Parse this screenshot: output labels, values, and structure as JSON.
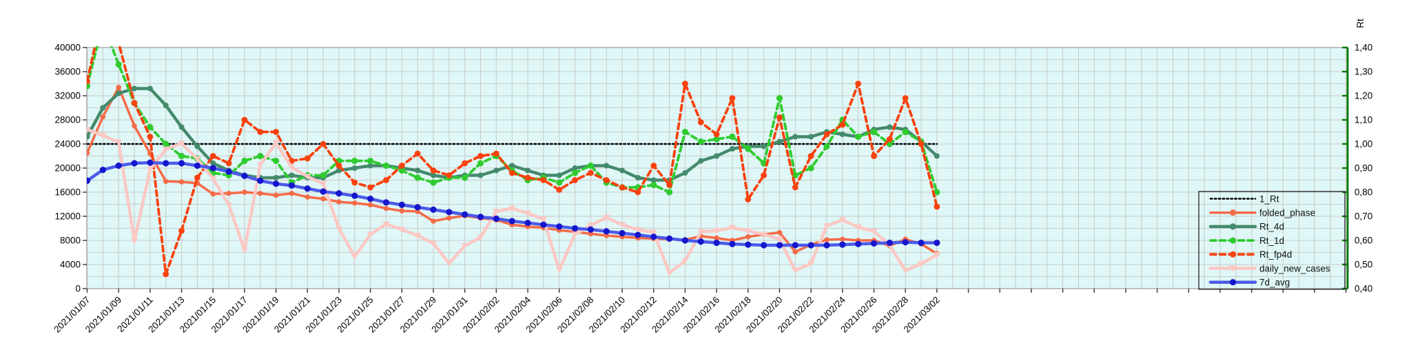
{
  "chart_data": {
    "type": "line",
    "title": "",
    "plot_bg": "#DFF7F7",
    "grid_color": "#C9C9C9",
    "border_color": "#9C9C9C",
    "x_axis": {
      "label_every": 2,
      "categories": [
        "2021/01/07",
        "2021/01/08",
        "2021/01/09",
        "2021/01/10",
        "2021/01/11",
        "2021/01/12",
        "2021/01/13",
        "2021/01/14",
        "2021/01/15",
        "2021/01/16",
        "2021/01/17",
        "2021/01/18",
        "2021/01/19",
        "2021/01/20",
        "2021/01/21",
        "2021/01/22",
        "2021/01/23",
        "2021/01/24",
        "2021/01/25",
        "2021/01/26",
        "2021/01/27",
        "2021/01/28",
        "2021/01/29",
        "2021/01/30",
        "2021/01/31",
        "2021/02/01",
        "2021/02/02",
        "2021/02/03",
        "2021/02/04",
        "2021/02/05",
        "2021/02/06",
        "2021/02/07",
        "2021/02/08",
        "2021/02/09",
        "2021/02/10",
        "2021/02/11",
        "2021/02/12",
        "2021/02/13",
        "2021/02/14",
        "2021/02/15",
        "2021/02/16",
        "2021/02/17",
        "2021/02/18",
        "2021/02/19",
        "2021/02/20",
        "2021/02/21",
        "2021/02/22",
        "2021/02/23",
        "2021/02/24",
        "2021/02/25",
        "2021/02/26",
        "2021/02/27",
        "2021/02/28",
        "2021/03/01",
        "2021/03/02"
      ]
    },
    "left_axis": {
      "min": 0,
      "max": 40000,
      "major": 4000,
      "minor": 2000,
      "tick_labels": [
        "0",
        "4000",
        "8000",
        "12000",
        "16000",
        "20000",
        "24000",
        "28000",
        "32000",
        "36000",
        "40000"
      ]
    },
    "right_axis": {
      "title": "Rt",
      "min": 0.4,
      "max": 1.4,
      "major": 0.1,
      "color": "#0B7A0B",
      "tick_labels": [
        "0,40",
        "0,50",
        "0,60",
        "0,70",
        "0,80",
        "0,90",
        "1,00",
        "1,10",
        "1,20",
        "1,30",
        "1,40"
      ]
    },
    "series": [
      {
        "name": "1_Rt",
        "axis": "right",
        "color": "#000000",
        "dash": "dotted",
        "marker": "none",
        "width": 2.5,
        "msize": 0,
        "constant": 1.0
      },
      {
        "name": "folded_phase",
        "axis": "left",
        "color": "#F56B47",
        "dash": "solid",
        "marker": "dot",
        "width": 3.5,
        "msize": 3.8,
        "values": [
          22500,
          28500,
          33400,
          27000,
          22400,
          17800,
          17700,
          17500,
          15700,
          15800,
          16000,
          15800,
          15500,
          15800,
          15200,
          14900,
          14400,
          14200,
          13900,
          13300,
          12900,
          12800,
          11200,
          11700,
          12100,
          11700,
          11400,
          10600,
          10300,
          10100,
          9700,
          9400,
          9100,
          8800,
          8600,
          8400,
          8300,
          8200,
          8100,
          8700,
          8400,
          8000,
          8600,
          9000,
          9300,
          6100,
          7300,
          8100,
          8200,
          8000,
          8000,
          7100,
          8200,
          7400,
          5800
        ]
      },
      {
        "name": "Rt_4d",
        "axis": "right",
        "color": "#448A6C",
        "dash": "solid",
        "marker": "dot",
        "width": 4.5,
        "msize": 4,
        "values": [
          1.03,
          1.15,
          1.21,
          1.23,
          1.23,
          1.16,
          1.07,
          0.99,
          0.92,
          0.89,
          0.87,
          0.86,
          0.86,
          0.87,
          0.86,
          0.86,
          0.89,
          0.9,
          0.91,
          0.91,
          0.9,
          0.89,
          0.87,
          0.86,
          0.87,
          0.87,
          0.89,
          0.91,
          0.89,
          0.87,
          0.87,
          0.9,
          0.91,
          0.91,
          0.89,
          0.86,
          0.85,
          0.85,
          0.88,
          0.93,
          0.95,
          0.98,
          0.99,
          0.99,
          1.01,
          1.03,
          1.03,
          1.05,
          1.04,
          1.03,
          1.06,
          1.07,
          1.06,
          1.01,
          0.95
        ]
      },
      {
        "name": "Rt_1d",
        "axis": "right",
        "color": "#2FCC2F",
        "dash": "dashed",
        "marker": "dot",
        "width": 3.8,
        "msize": 4.6,
        "values": [
          1.24,
          1.5,
          1.33,
          1.17,
          1.07,
          1.0,
          0.95,
          0.94,
          0.88,
          0.87,
          0.93,
          0.95,
          0.93,
          0.84,
          0.87,
          0.87,
          0.93,
          0.93,
          0.93,
          0.91,
          0.89,
          0.86,
          0.84,
          0.86,
          0.86,
          0.92,
          0.95,
          0.89,
          0.85,
          0.86,
          0.84,
          0.88,
          0.91,
          0.84,
          0.82,
          0.82,
          0.83,
          0.8,
          1.05,
          1.01,
          1.02,
          1.03,
          0.98,
          0.92,
          1.19,
          0.87,
          0.9,
          0.99,
          1.1,
          1.03,
          1.05,
          1.0,
          1.05,
          1.01,
          0.8
        ]
      },
      {
        "name": "Rt_fp4d",
        "axis": "right",
        "color": "#F8420E",
        "dash": "dashed",
        "marker": "dot",
        "width": 3.8,
        "msize": 4.4,
        "values": [
          1.26,
          1.55,
          1.42,
          1.17,
          1.03,
          0.46,
          0.64,
          0.86,
          0.95,
          0.92,
          1.1,
          1.05,
          1.05,
          0.93,
          0.94,
          1.0,
          0.91,
          0.84,
          0.82,
          0.85,
          0.91,
          0.96,
          0.89,
          0.87,
          0.92,
          0.95,
          0.96,
          0.88,
          0.86,
          0.85,
          0.81,
          0.85,
          0.88,
          0.85,
          0.82,
          0.8,
          0.91,
          0.83,
          1.25,
          1.09,
          1.04,
          1.19,
          0.77,
          0.87,
          1.11,
          0.82,
          0.95,
          1.04,
          1.08,
          1.25,
          0.95,
          1.02,
          1.19,
          1.0,
          0.74
        ]
      },
      {
        "name": "daily_new_cases",
        "axis": "left",
        "color": "#FBC8C4",
        "dash": "solid",
        "marker": "triangle-down",
        "width": 4.5,
        "msize": 5,
        "values": [
          26400,
          25400,
          24300,
          7900,
          19800,
          23100,
          24100,
          21500,
          18300,
          13900,
          6400,
          20500,
          24200,
          20100,
          18600,
          17400,
          10000,
          5300,
          9000,
          10700,
          9800,
          8800,
          7500,
          4200,
          7100,
          8500,
          12800,
          13300,
          12500,
          11500,
          3100,
          9000,
          10500,
          11800,
          10600,
          9800,
          9300,
          2600,
          4600,
          9400,
          9600,
          10100,
          9600,
          9000,
          8200,
          3000,
          4200,
          10400,
          11400,
          10200,
          9500,
          7200,
          3000,
          4100,
          5600
        ]
      },
      {
        "name": "7d_avg",
        "axis": "left",
        "color": "#4A5BE8",
        "marker_color": "#1616CC",
        "dash": "solid",
        "marker": "dot",
        "width": 4.5,
        "msize": 4.6,
        "values": [
          17900,
          19700,
          20400,
          20800,
          20900,
          20800,
          20800,
          20400,
          20000,
          19400,
          18700,
          17900,
          17400,
          17100,
          16600,
          16100,
          15800,
          15400,
          14900,
          14300,
          13900,
          13500,
          13100,
          12700,
          12300,
          11900,
          11600,
          11200,
          10900,
          10600,
          10300,
          10000,
          9800,
          9500,
          9200,
          8900,
          8600,
          8300,
          8000,
          7800,
          7600,
          7400,
          7300,
          7200,
          7200,
          7200,
          7200,
          7200,
          7300,
          7400,
          7500,
          7600,
          7700,
          7600,
          7600
        ]
      }
    ],
    "legend": {
      "entries": [
        "1_Rt",
        "folded_phase",
        "Rt_4d",
        "Rt_1d",
        "Rt_fp4d",
        "daily_new_cases",
        "7d_avg"
      ],
      "border_color": "#222222"
    }
  }
}
